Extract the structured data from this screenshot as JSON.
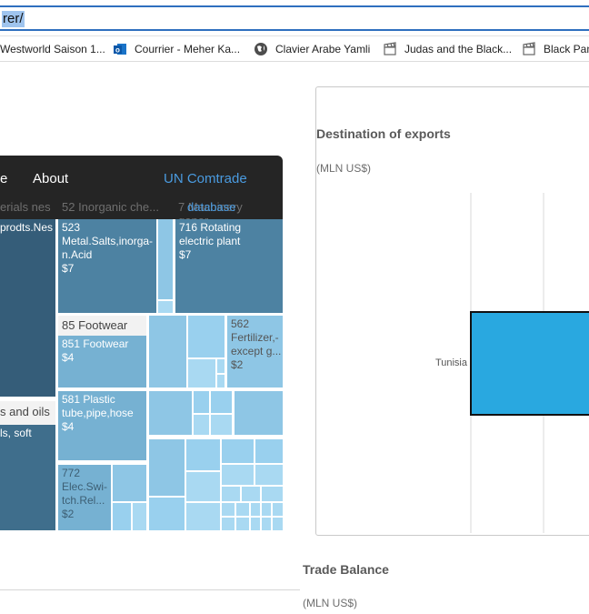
{
  "browser": {
    "url_fragment": "rer/",
    "bookmarks": [
      {
        "label": "Westworld Saison 1...",
        "icon": "page-icon"
      },
      {
        "label": "Courrier - Meher Ka...",
        "icon": "outlook-icon"
      },
      {
        "label": "Clavier Arabe Yamli",
        "icon": "globe-icon"
      },
      {
        "label": "Judas and the Black...",
        "icon": "film-clapper-icon"
      },
      {
        "label": "Black Pan",
        "icon": "film-clapper-icon"
      }
    ]
  },
  "app": {
    "nav_partial": "e",
    "nav_about": "About",
    "link_comtrade": "UN Comtrade",
    "link_database": "database",
    "sub_labels": [
      "erials nes",
      "52 Inorganic che...",
      "7 Machinery gener..."
    ]
  },
  "treemap": {
    "headers": {
      "footwear": "85 Footwear",
      "oils": "s and oils"
    },
    "tiles": {
      "prodts": "prodts.Nes",
      "metal_salts": "523\nMetal.Salts,inorga-\nn.Acid\n$7",
      "rotating": "716 Rotating\nelectric plant\n$7",
      "footwear851": "851 Footwear\n$4",
      "fertilizer": "562\nFertilizer,-\nexcept g...\n$2",
      "soft": "ls, soft",
      "plastic": "581 Plastic\ntube,pipe,hose\n$4",
      "switch": "772\nElec.Swi-\ntch.Rel...\n$2"
    }
  },
  "exports_chart": {
    "title": "Destination of exports",
    "unit": "(MLN US$)",
    "category": "Tunisia",
    "colors": {
      "bar": "#29a8e0",
      "bar_border": "#111111"
    }
  },
  "trade_balance": {
    "title": "Trade Balance",
    "unit": "(MLN US$)"
  },
  "colors": {
    "app_bg": "#252525",
    "link": "#4a9be0",
    "dark_tile": "#355d79",
    "mid_tile": "#4f84a5",
    "light_tile": "#8ec6e5",
    "pale_tile": "#a9d9f2"
  }
}
